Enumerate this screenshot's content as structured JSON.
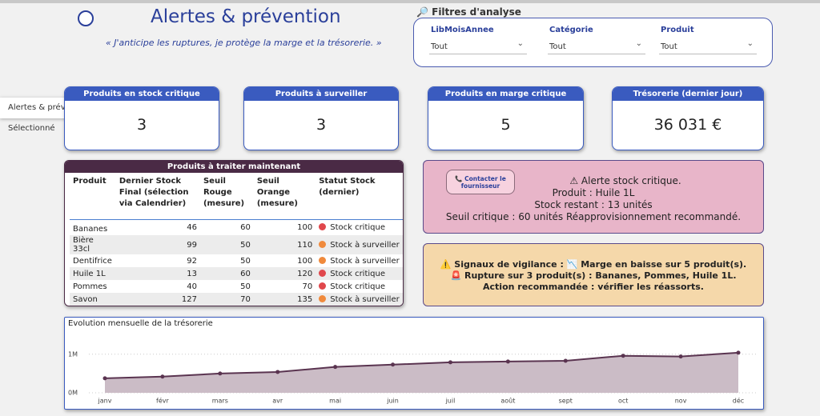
{
  "header": {
    "title": "Alertes & prévention",
    "subtitle": "« J'anticipe les ruptures, je protège la marge et la trésorerie. »"
  },
  "tooltip": "Alertes & prévention Sélectionné",
  "filters": {
    "title": "🔎 Filtres d'analyse",
    "items": [
      {
        "label": "LibMoisAnnee",
        "value": "Tout"
      },
      {
        "label": "Catégorie",
        "value": "Tout"
      },
      {
        "label": "Produit",
        "value": "Tout"
      }
    ]
  },
  "kpis": [
    {
      "title": "Produits en stock critique",
      "value": "3"
    },
    {
      "title": "Produits à surveiller",
      "value": "3"
    },
    {
      "title": "Produits en marge critique",
      "value": "5"
    },
    {
      "title": "Trésorerie (dernier jour)",
      "value": "36 031 €"
    }
  ],
  "table": {
    "title": "Produits à traiter maintenant",
    "columns": [
      "Produit",
      "Dernier Stock Final (sélection via Calendrier)",
      "Seuil Rouge (mesure)",
      "Seuil Orange (mesure)",
      "Statut Stock (dernier)"
    ],
    "rows": [
      {
        "product": "Bananes",
        "stock": 46,
        "red": 60,
        "orange": 100,
        "status": "Stock critique",
        "status_color": "#e0474c"
      },
      {
        "product": "Bière 33cl",
        "stock": 99,
        "red": 50,
        "orange": 110,
        "status": "Stock à surveiller",
        "status_color": "#f08a3c"
      },
      {
        "product": "Dentifrice",
        "stock": 92,
        "red": 50,
        "orange": 100,
        "status": "Stock à surveiller",
        "status_color": "#f08a3c"
      },
      {
        "product": "Huile 1L",
        "stock": 13,
        "red": 60,
        "orange": 120,
        "status": "Stock critique",
        "status_color": "#e0474c"
      },
      {
        "product": "Pommes",
        "stock": 40,
        "red": 50,
        "orange": 70,
        "status": "Stock critique",
        "status_color": "#e0474c"
      },
      {
        "product": "Savon",
        "stock": 127,
        "red": 70,
        "orange": 135,
        "status": "Stock à surveiller",
        "status_color": "#f08a3c"
      }
    ]
  },
  "alert": {
    "button": "📞 Contacter le fournisseur",
    "lines": [
      "⚠ Alerte stock critique.",
      "Produit : Huile 1L",
      "Stock restant : 13 unités",
      "Seuil critique : 60 unités Réapprovisionnement recommandé."
    ]
  },
  "vigilance": {
    "lines": [
      "⚠️ Signaux de vigilance : 📉 Marge en baisse sur 5 produit(s).",
      "🚨 Rupture sur 3 produit(s) : Bananes, Pommes, Huile 1L.",
      "Action recommandée : vérifier les réassorts."
    ]
  },
  "chart_data": {
    "type": "area",
    "title": "Evolution mensuelle de la trésorerie",
    "categories": [
      "janv",
      "févr",
      "mars",
      "avr",
      "mai",
      "juin",
      "juil",
      "août",
      "sept",
      "oct",
      "nov",
      "déc"
    ],
    "series": [
      {
        "name": "Trésorerie",
        "color": "#5a3450",
        "fill": "#cbbcc6",
        "values": [
          375000,
          420000,
          500000,
          540000,
          670000,
          730000,
          790000,
          810000,
          830000,
          960000,
          940000,
          1040000
        ]
      }
    ],
    "ylim": [
      0,
      1700000
    ],
    "yticks": [
      {
        "value": 0,
        "label": "0M"
      },
      {
        "value": 1000000,
        "label": "1M"
      }
    ],
    "grid": true
  }
}
